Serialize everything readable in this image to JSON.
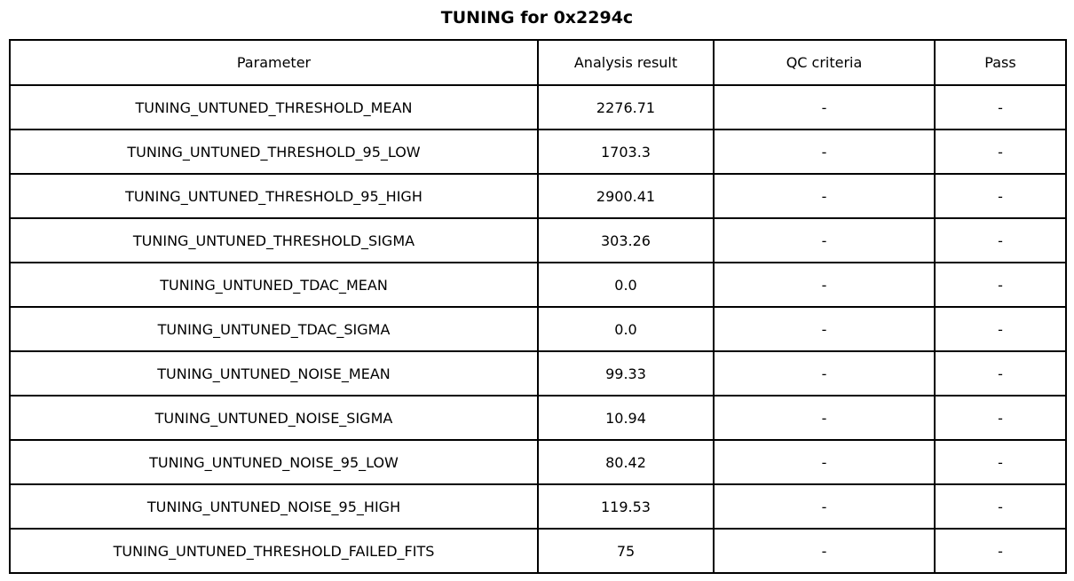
{
  "title": "TUNING for 0x2294c",
  "chart_data": {
    "type": "table",
    "title": "TUNING for 0x2294c",
    "columns": [
      "Parameter",
      "Analysis result",
      "QC criteria",
      "Pass"
    ],
    "rows": [
      [
        "TUNING_UNTUNED_THRESHOLD_MEAN",
        "2276.71",
        "-",
        "-"
      ],
      [
        "TUNING_UNTUNED_THRESHOLD_95_LOW",
        "1703.3",
        "-",
        "-"
      ],
      [
        "TUNING_UNTUNED_THRESHOLD_95_HIGH",
        "2900.41",
        "-",
        "-"
      ],
      [
        "TUNING_UNTUNED_THRESHOLD_SIGMA",
        "303.26",
        "-",
        "-"
      ],
      [
        "TUNING_UNTUNED_TDAC_MEAN",
        "0.0",
        "-",
        "-"
      ],
      [
        "TUNING_UNTUNED_TDAC_SIGMA",
        "0.0",
        "-",
        "-"
      ],
      [
        "TUNING_UNTUNED_NOISE_MEAN",
        "99.33",
        "-",
        "-"
      ],
      [
        "TUNING_UNTUNED_NOISE_SIGMA",
        "10.94",
        "-",
        "-"
      ],
      [
        "TUNING_UNTUNED_NOISE_95_LOW",
        "80.42",
        "-",
        "-"
      ],
      [
        "TUNING_UNTUNED_NOISE_95_HIGH",
        "119.53",
        "-",
        "-"
      ],
      [
        "TUNING_UNTUNED_THRESHOLD_FAILED_FITS",
        "75",
        "-",
        "-"
      ]
    ]
  },
  "colors": {
    "background": "#ffffff",
    "border": "#000000",
    "text": "#000000"
  }
}
